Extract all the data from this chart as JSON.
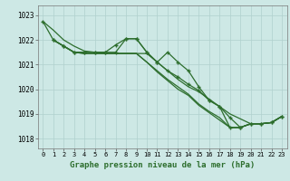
{
  "background_color": "#cde8e5",
  "grid_color": "#b0d0cd",
  "line_color": "#2d6e2d",
  "marker_color": "#2d6e2d",
  "ylabel_ticks": [
    1018,
    1019,
    1020,
    1021,
    1022,
    1023
  ],
  "xlabel_ticks": [
    0,
    1,
    2,
    3,
    4,
    5,
    6,
    7,
    8,
    9,
    10,
    11,
    12,
    13,
    14,
    15,
    16,
    17,
    18,
    19,
    20,
    21,
    22,
    23
  ],
  "xlabel": "Graphe pression niveau de la mer (hPa)",
  "xlim": [
    -0.5,
    23.5
  ],
  "ylim": [
    1017.6,
    1023.4
  ],
  "lines": [
    {
      "x": [
        0,
        1,
        2,
        3,
        4,
        5,
        6,
        7,
        8,
        9,
        10,
        11,
        12,
        13,
        14,
        15,
        16,
        17,
        18,
        19,
        20,
        21,
        22,
        23
      ],
      "y": [
        1022.75,
        1022.4,
        1022.0,
        1021.75,
        1021.55,
        1021.5,
        1021.45,
        1021.45,
        1021.45,
        1021.45,
        1021.45,
        1021.1,
        1020.75,
        1020.4,
        1020.1,
        1019.9,
        1019.6,
        1019.3,
        1019.0,
        1018.8,
        1018.6,
        1018.6,
        1018.65,
        1018.9
      ],
      "has_markers": false,
      "lw": 0.9
    },
    {
      "x": [
        0,
        1,
        2,
        3,
        4,
        5,
        6,
        7,
        8,
        9,
        10,
        11,
        12,
        13,
        14,
        15,
        16,
        17,
        18,
        19,
        20,
        21,
        22,
        23
      ],
      "y": [
        1022.75,
        1022.0,
        1021.75,
        1021.5,
        1021.5,
        1021.5,
        1021.5,
        1021.8,
        1022.05,
        1022.05,
        1021.5,
        1021.1,
        1021.5,
        1021.1,
        1020.75,
        1020.1,
        1019.55,
        1019.3,
        1018.45,
        1018.45,
        1018.6,
        1018.6,
        1018.65,
        1018.9
      ],
      "has_markers": true,
      "lw": 0.9
    },
    {
      "x": [
        1,
        2,
        3,
        4,
        5,
        6,
        7,
        8,
        9,
        10,
        11,
        12,
        13,
        14,
        15,
        16,
        17,
        18,
        19,
        20,
        21,
        22,
        23
      ],
      "y": [
        1022.0,
        1021.75,
        1021.5,
        1021.45,
        1021.45,
        1021.45,
        1021.45,
        1021.45,
        1021.45,
        1021.1,
        1020.75,
        1020.4,
        1020.1,
        1019.8,
        1019.4,
        1019.1,
        1018.85,
        1018.45,
        1018.45,
        1018.6,
        1018.6,
        1018.65,
        1018.9
      ],
      "has_markers": false,
      "lw": 0.9
    },
    {
      "x": [
        1,
        2,
        3,
        4,
        5,
        6,
        7,
        8,
        9,
        10,
        11,
        12,
        13,
        14,
        15,
        16,
        17,
        18,
        19,
        20,
        21,
        22,
        23
      ],
      "y": [
        1022.0,
        1021.75,
        1021.5,
        1021.45,
        1021.45,
        1021.45,
        1021.45,
        1021.45,
        1021.45,
        1021.1,
        1020.7,
        1020.35,
        1020.0,
        1019.75,
        1019.35,
        1019.05,
        1018.75,
        1018.45,
        1018.45,
        1018.6,
        1018.6,
        1018.65,
        1018.9
      ],
      "has_markers": false,
      "lw": 0.9
    },
    {
      "x": [
        1,
        2,
        3,
        4,
        5,
        6,
        7,
        8,
        9,
        10,
        11,
        12,
        13,
        14,
        15,
        16,
        17,
        18,
        19,
        20,
        21,
        22,
        23
      ],
      "y": [
        1022.0,
        1021.75,
        1021.5,
        1021.5,
        1021.5,
        1021.5,
        1021.5,
        1022.05,
        1022.05,
        1021.5,
        1021.1,
        1020.75,
        1020.5,
        1020.2,
        1019.95,
        1019.55,
        1019.3,
        1018.85,
        1018.45,
        1018.6,
        1018.6,
        1018.65,
        1018.9
      ],
      "has_markers": true,
      "lw": 0.9
    }
  ]
}
